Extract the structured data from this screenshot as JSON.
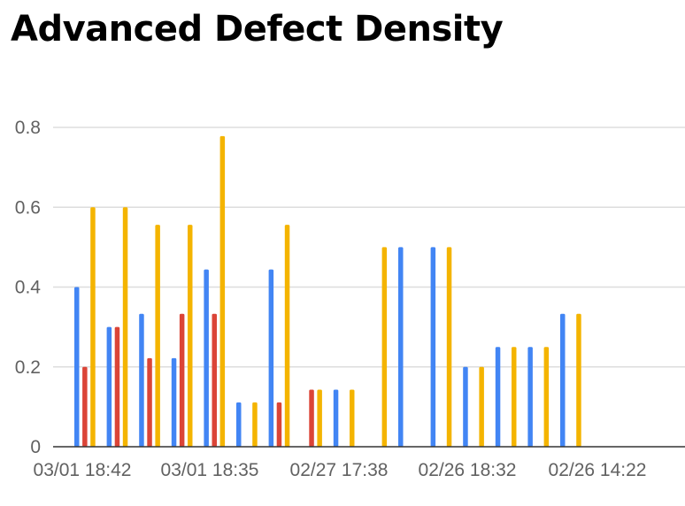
{
  "title": "Advanced Defect Density",
  "colors": {
    "blue": "#4285F4",
    "red": "#DB4437",
    "yellow": "#F4B400",
    "grid": "#dddddd",
    "axis": "#333333",
    "text": "#616161"
  },
  "chart_data": {
    "type": "bar",
    "title": "Advanced Defect Density",
    "xlabel": "",
    "ylabel": "",
    "ylim": [
      0,
      0.8
    ],
    "yticks": [
      "0",
      "0.2",
      "0.4",
      "0.6",
      "0.8"
    ],
    "grid": true,
    "legend": "none",
    "categories": [
      "03/01 18:42",
      "",
      "",
      "",
      "",
      "03/01 18:35",
      "",
      "",
      "02/27 17:38",
      "",
      "",
      "02/26 18:32",
      "",
      "",
      "02/26 14:22",
      "",
      ""
    ],
    "tick_labels": [
      "03/01 18:42",
      "03/01 18:35",
      "02/27 17:38",
      "02/26 18:32",
      "02/26 14:22"
    ],
    "series": [
      {
        "color": "blue",
        "values": [
          0.4,
          0.3,
          0.333,
          0.222,
          0.444,
          0.111,
          0.444,
          0.0,
          0.143,
          0.0,
          0.5,
          0.5,
          0.2,
          0.25,
          0.25,
          0.333,
          0.0
        ]
      },
      {
        "color": "red",
        "values": [
          0.2,
          0.3,
          0.222,
          0.333,
          0.333,
          0.0,
          0.111,
          0.143,
          0.0,
          0.0,
          0.0,
          0.0,
          0.0,
          0.0,
          0.0,
          0.0,
          0.0
        ]
      },
      {
        "color": "yellow",
        "values": [
          0.6,
          0.6,
          0.556,
          0.556,
          0.778,
          0.111,
          0.556,
          0.143,
          0.143,
          0.5,
          0.0,
          0.5,
          0.2,
          0.25,
          0.25,
          0.333,
          0.0
        ]
      }
    ]
  }
}
